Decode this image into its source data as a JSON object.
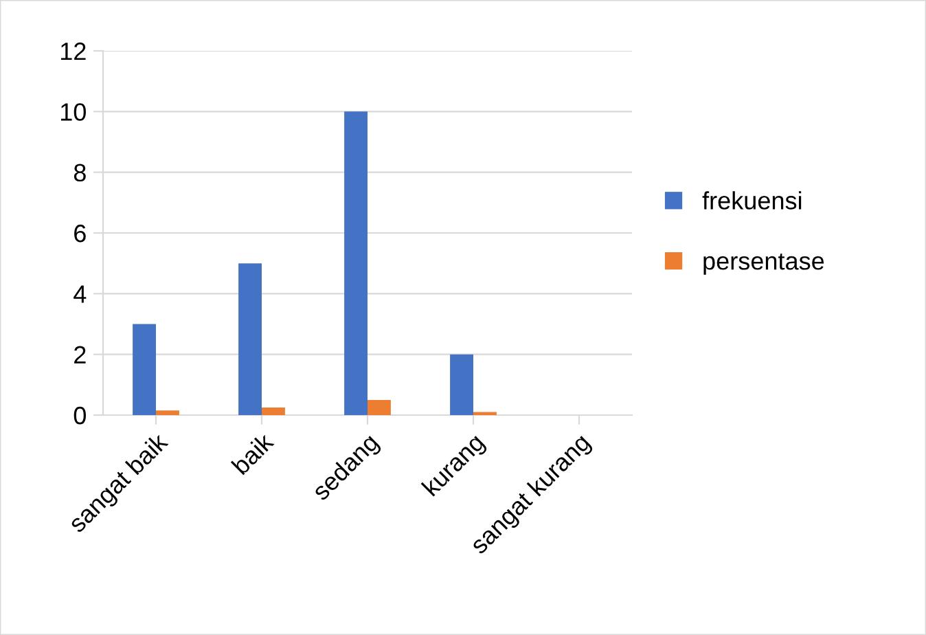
{
  "chart_data": {
    "type": "bar",
    "categories": [
      "sangat baik",
      "baik",
      "sedang",
      "kurang",
      "sangat kurang"
    ],
    "series": [
      {
        "name": "frekuensi",
        "color": "#4472c4",
        "values": [
          3,
          5,
          10,
          2,
          0
        ]
      },
      {
        "name": "persentase",
        "color": "#ed7d31",
        "values": [
          0.15,
          0.25,
          0.5,
          0.1,
          0
        ]
      }
    ],
    "ylim": [
      0,
      12
    ],
    "yticks": [
      0,
      2,
      4,
      6,
      8,
      10,
      12
    ],
    "grid": "y",
    "legend": "right"
  }
}
